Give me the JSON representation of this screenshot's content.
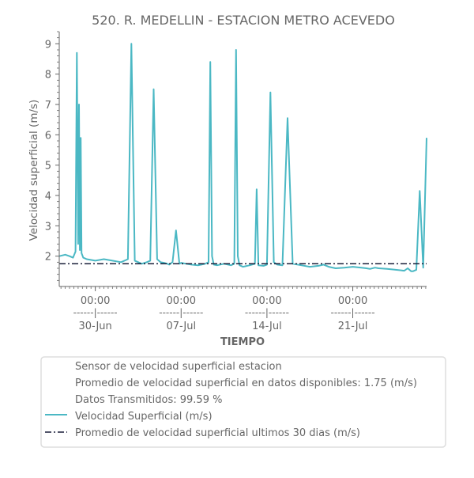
{
  "chart_data": {
    "type": "line",
    "title": "520. R. MEDELLIN - ESTACION METRO ACEVEDO",
    "xlabel": "TIEMPO",
    "ylabel": "Velocidad superficial (m/s)",
    "ylim": [
      1.0,
      9.4
    ],
    "yticks": [
      2,
      3,
      4,
      5,
      6,
      7,
      8,
      9
    ],
    "xlim": [
      -4.2,
      38.6
    ],
    "grid": false,
    "legend_position": "bottom",
    "xticks": [
      {
        "day": 0,
        "time": "00:00",
        "sep": "------|------",
        "date": "30-Jun"
      },
      {
        "day": 10,
        "time": "00:00",
        "sep": "------|------",
        "date": "07-Jul"
      },
      {
        "day": 20,
        "time": "00:00",
        "sep": "------|------",
        "date": "14-Jul"
      },
      {
        "day": 30,
        "time": "00:00",
        "sep": "------|------",
        "date": "21-Jul"
      }
    ],
    "legend": {
      "info_lines": [
        "Sensor de velocidad superficial estacion",
        "Promedio de velocidad superficial en datos disponibles: 1.75 (m/s)",
        "Datos Transmitidos: 99.59 %"
      ],
      "series_labels": [
        "Velocidad Superficial (m/s)",
        "Promedio de velocidad superficial ultimos 30 dias (m/s)"
      ]
    },
    "series": [
      {
        "name": "Velocidad Superficial (m/s)",
        "color": "#4bb8c4",
        "x": [
          -4.2,
          -3.5,
          -3.0,
          -2.6,
          -2.3,
          -2.15,
          -2.0,
          -1.9,
          -1.8,
          -1.7,
          -1.6,
          -1.4,
          -1.0,
          0.0,
          1.0,
          2.0,
          3.0,
          3.8,
          4.2,
          4.6,
          5.0,
          5.4,
          6.0,
          6.4,
          6.8,
          7.2,
          7.6,
          8.0,
          8.4,
          8.6,
          9.0,
          9.4,
          9.8,
          10.0,
          10.6,
          11.2,
          12.0,
          12.8,
          13.2,
          13.4,
          13.6,
          13.8,
          14.2,
          15.0,
          15.8,
          16.2,
          16.4,
          16.6,
          16.8,
          17.2,
          18.0,
          18.6,
          18.8,
          19.0,
          19.6,
          20.0,
          20.4,
          20.8,
          21.2,
          21.8,
          22.4,
          23.0,
          24.0,
          25.0,
          26.0,
          26.6,
          27.2,
          28.0,
          29.0,
          30.0,
          31.0,
          31.6,
          32.0,
          32.6,
          33.0,
          34.0,
          35.0,
          36.0,
          36.4,
          36.8,
          37.0,
          37.4,
          37.8,
          38.2,
          38.6
        ],
        "y": [
          2.0,
          2.05,
          2.0,
          1.95,
          2.15,
          8.7,
          2.4,
          7.0,
          2.2,
          5.9,
          2.1,
          1.95,
          1.9,
          1.85,
          1.9,
          1.85,
          1.8,
          1.9,
          9.0,
          1.85,
          1.8,
          1.75,
          1.8,
          1.85,
          7.5,
          1.9,
          1.8,
          1.78,
          1.75,
          1.72,
          1.8,
          2.85,
          1.75,
          1.78,
          1.75,
          1.72,
          1.7,
          1.75,
          1.8,
          8.4,
          2.0,
          1.72,
          1.7,
          1.75,
          1.7,
          1.75,
          8.8,
          2.0,
          1.7,
          1.65,
          1.7,
          1.75,
          4.2,
          1.7,
          1.68,
          1.72,
          7.4,
          1.8,
          1.72,
          1.7,
          6.55,
          1.75,
          1.7,
          1.65,
          1.68,
          1.72,
          1.65,
          1.6,
          1.62,
          1.65,
          1.62,
          1.6,
          1.58,
          1.62,
          1.6,
          1.58,
          1.55,
          1.52,
          1.6,
          1.5,
          1.5,
          1.55,
          4.15,
          1.62,
          5.9
        ]
      },
      {
        "name": "Promedio de velocidad superficial ultimos 30 dias (m/s)",
        "color": "#1a1f3a",
        "x": [
          -4.2,
          38.6
        ],
        "y": [
          1.75,
          1.75
        ]
      }
    ]
  }
}
